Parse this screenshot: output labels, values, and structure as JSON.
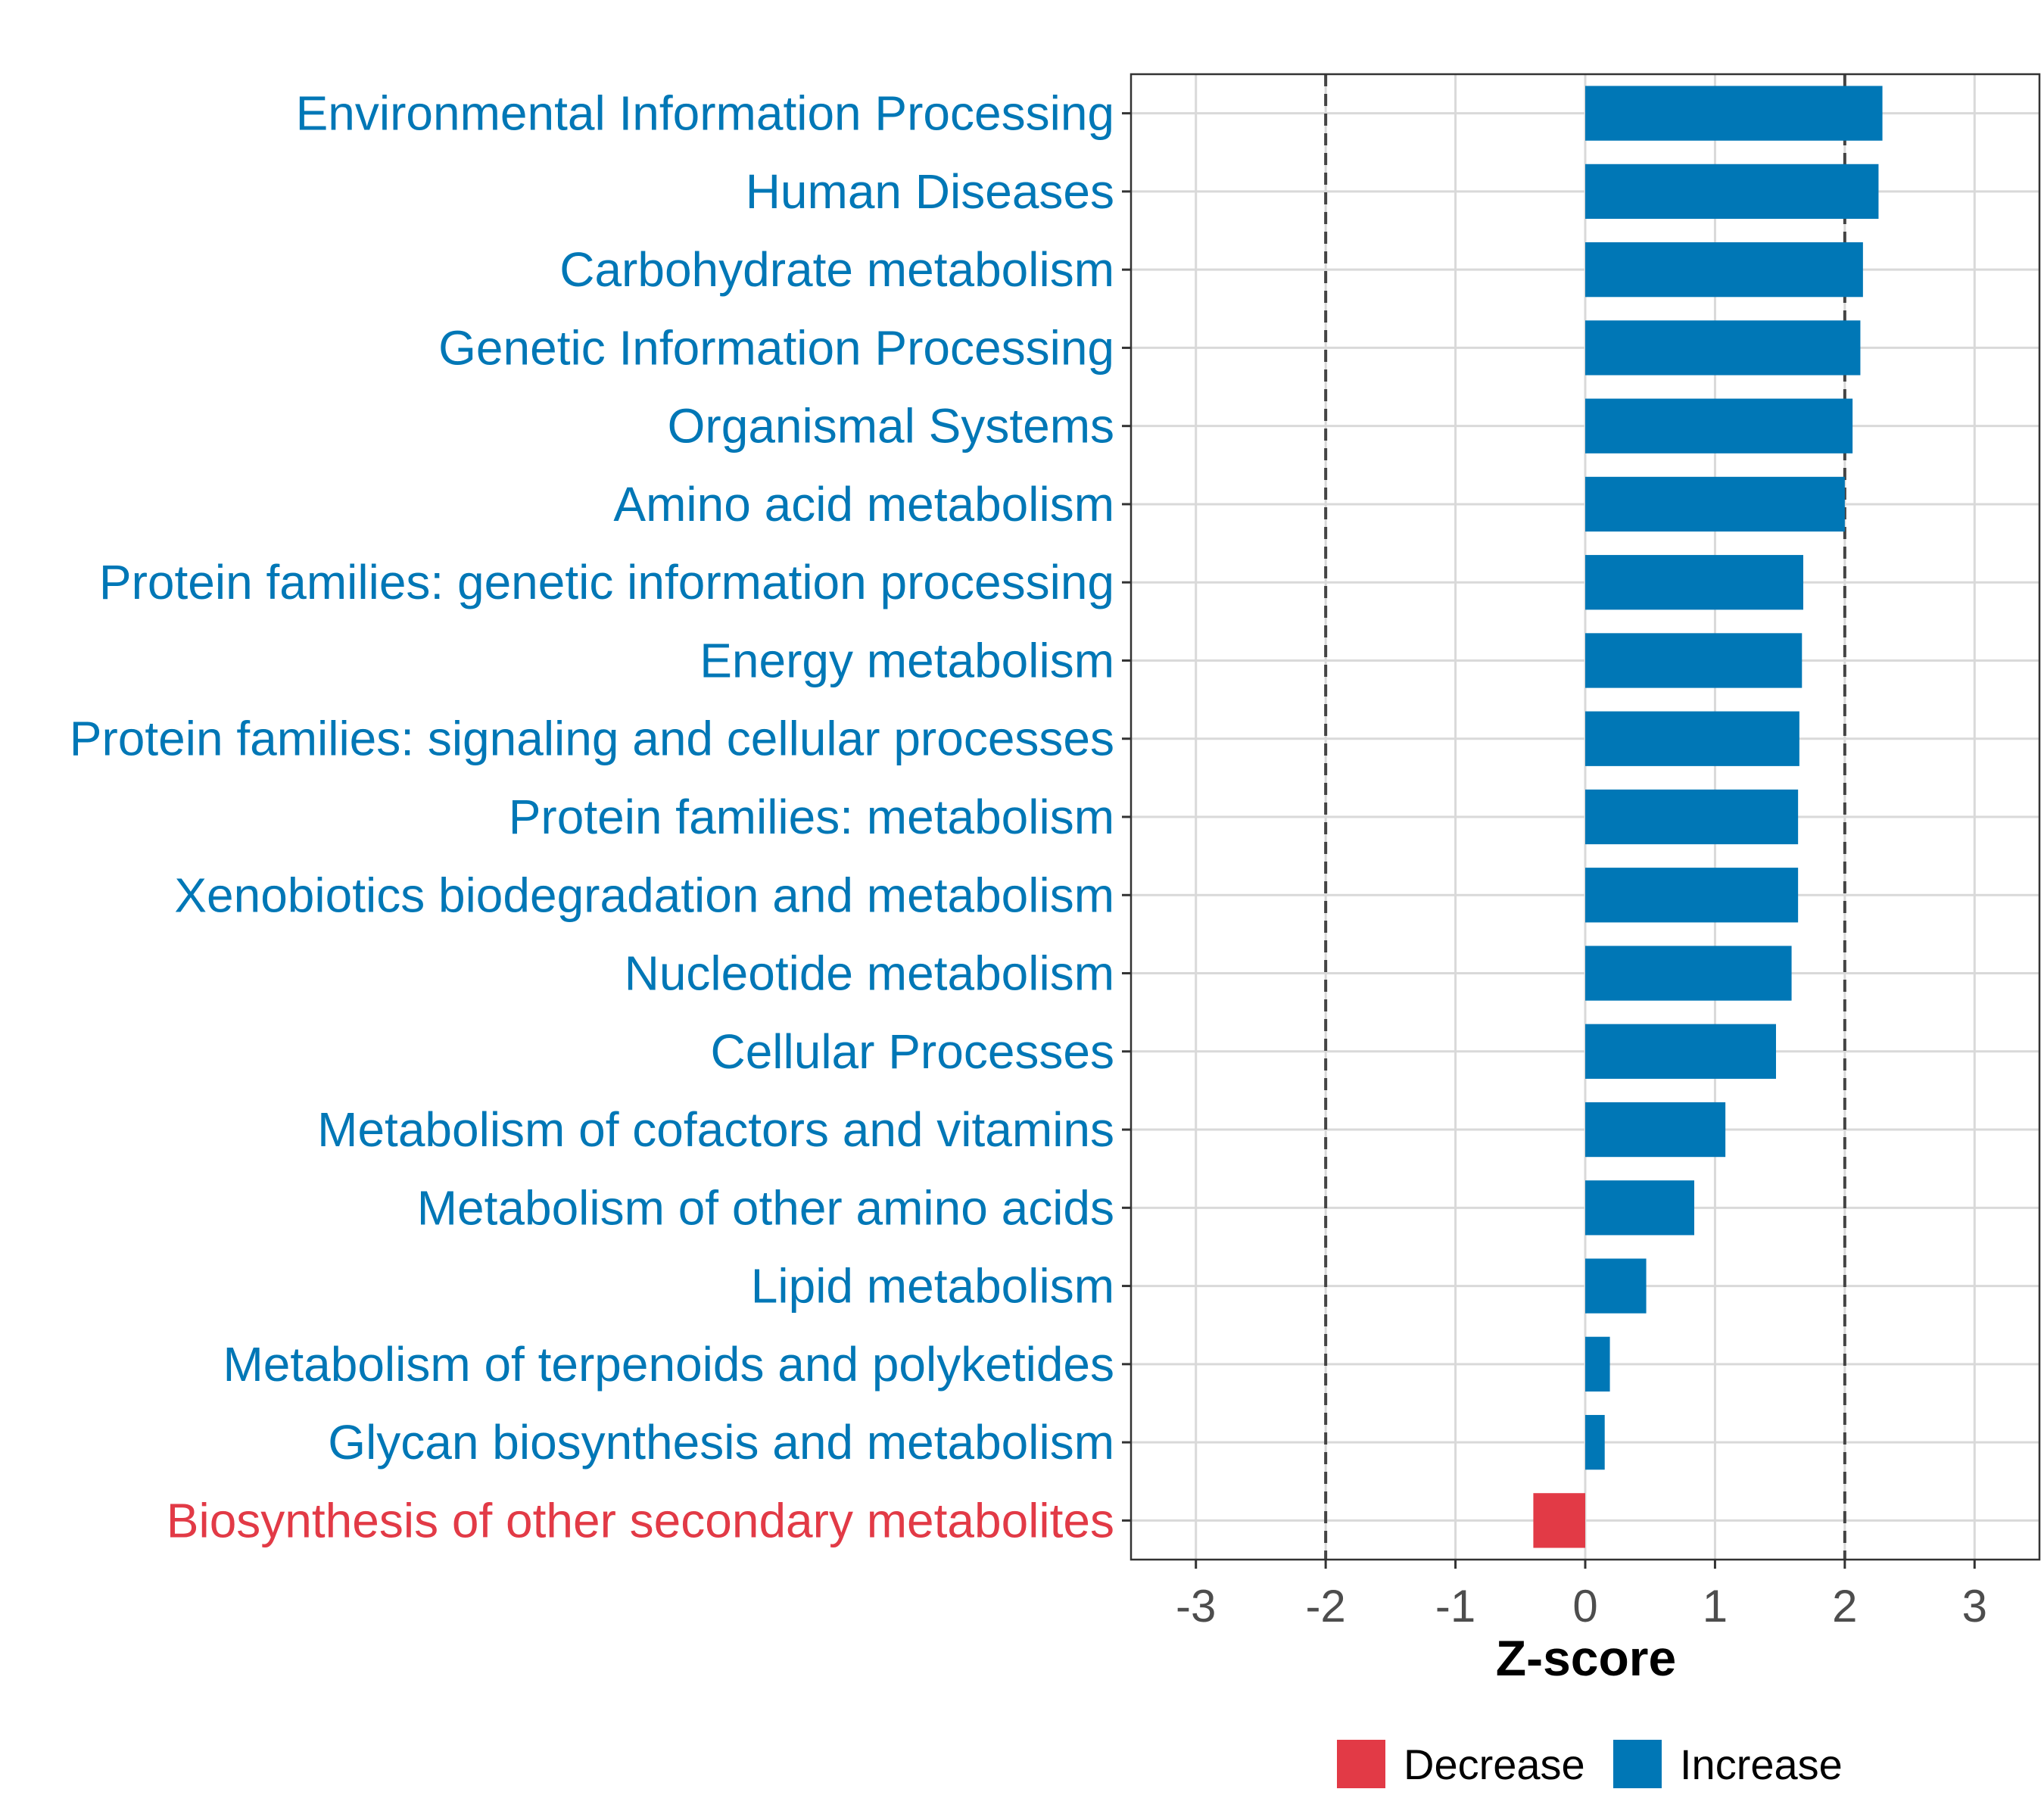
{
  "chart_data": {
    "type": "bar",
    "orientation": "horizontal",
    "categories": [
      "Environmental Information Processing",
      "Human Diseases",
      "Carbohydrate metabolism",
      "Genetic Information Processing",
      "Organismal Systems",
      "Amino acid metabolism",
      "Protein families: genetic information processing",
      "Energy metabolism",
      "Protein families: signaling and cellular processes",
      "Protein families: metabolism",
      "Xenobiotics biodegradation and metabolism",
      "Nucleotide metabolism",
      "Cellular Processes",
      "Metabolism of cofactors and vitamins",
      "Metabolism of other amino acids",
      "Lipid metabolism",
      "Metabolism of terpenoids and polyketides",
      "Glycan biosynthesis and metabolism",
      "Biosynthesis of other secondary metabolites"
    ],
    "values": [
      2.29,
      2.26,
      2.14,
      2.12,
      2.06,
      2.0,
      1.68,
      1.67,
      1.65,
      1.64,
      1.64,
      1.59,
      1.47,
      1.08,
      0.84,
      0.47,
      0.19,
      0.15,
      -0.4
    ],
    "groups": [
      "Increase",
      "Increase",
      "Increase",
      "Increase",
      "Increase",
      "Increase",
      "Increase",
      "Increase",
      "Increase",
      "Increase",
      "Increase",
      "Increase",
      "Increase",
      "Increase",
      "Increase",
      "Increase",
      "Increase",
      "Increase",
      "Decrease"
    ],
    "xlabel": "Z-score",
    "ylabel": "",
    "xlim": [
      -3.5,
      3.5
    ],
    "xticks": [
      -3,
      -2,
      -1,
      0,
      1,
      2,
      3
    ],
    "xtick_labels": [
      "-3",
      "-2",
      "-1",
      "0",
      "1",
      "2",
      "3"
    ],
    "reference_lines": [
      -2,
      2
    ],
    "grid": true,
    "legend": {
      "position": "bottom",
      "entries": [
        {
          "label": "Decrease",
          "color": "#e23a46"
        },
        {
          "label": "Increase",
          "color": "#0077b6"
        }
      ]
    }
  }
}
